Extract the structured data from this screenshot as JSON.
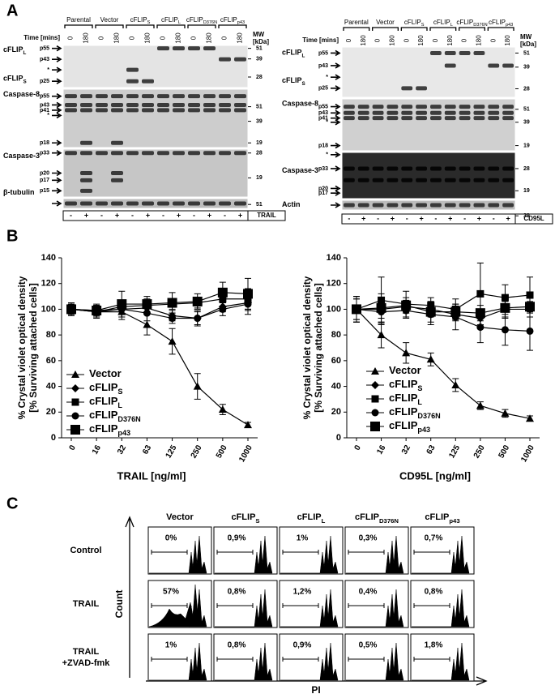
{
  "panel_a": {
    "label": "A",
    "blots": [
      {
        "time_label": "Time [mins]",
        "mw_label": "MW",
        "mw_unit": "[kDa]",
        "groups": [
          {
            "name": "Parental"
          },
          {
            "name": "Vector"
          },
          {
            "name": "cFLIP",
            "sub": "S"
          },
          {
            "name": "cFLIP",
            "sub": "L"
          },
          {
            "name": "cFLIP",
            "sub": "D376N"
          },
          {
            "name": "cFLIP",
            "sub": "p43"
          }
        ],
        "times": [
          "0",
          "180"
        ],
        "sections": [
          {
            "titles": [
              {
                "name": "cFLIP",
                "sub": "L"
              },
              {
                "name": "cFLIP",
                "sub": "S"
              }
            ],
            "bands": [
              "p55",
              "p43",
              "*",
              "p25"
            ],
            "mw": [
              "51",
              "39",
              "28"
            ]
          },
          {
            "titles": [
              {
                "name": "Caspase-8"
              }
            ],
            "bands": [
              "p55",
              "p43",
              "p41",
              "*",
              "p18"
            ],
            "mw": [
              "51",
              "39",
              "19"
            ]
          },
          {
            "titles": [
              {
                "name": "Caspase-3"
              }
            ],
            "bands": [
              "p33",
              "p20",
              "p17",
              "p15"
            ],
            "mw": [
              "28",
              "19"
            ]
          },
          {
            "titles": [
              {
                "name": "β-tubulin"
              }
            ],
            "bands": [],
            "mw": [
              "51"
            ]
          }
        ],
        "treatments": [
          "-",
          "+"
        ],
        "treatment": "TRAIL"
      },
      {
        "time_label": "Time [mins]",
        "mw_label": "MW",
        "mw_unit": "[kDa]",
        "groups": [
          {
            "name": "Parental"
          },
          {
            "name": "Vector"
          },
          {
            "name": "cFLIP",
            "sub": "S"
          },
          {
            "name": "cFLIP",
            "sub": "L"
          },
          {
            "name": "cFLIP",
            "sub": "D376N"
          },
          {
            "name": "cFLIP",
            "sub": "p43"
          }
        ],
        "times": [
          "0",
          "180"
        ],
        "sections": [
          {
            "titles": [
              {
                "name": "cFLIP",
                "sub": "L"
              },
              {
                "name": "cFLIP",
                "sub": "S"
              }
            ],
            "bands": [
              "p55",
              "p43",
              "*",
              "p25"
            ],
            "mw": [
              "51",
              "39",
              "28"
            ]
          },
          {
            "titles": [
              {
                "name": "Caspase-8"
              }
            ],
            "bands": [
              "p55",
              "p43",
              "p41",
              "*",
              "p18"
            ],
            "mw": [
              "51",
              "39",
              "19"
            ]
          },
          {
            "titles": [
              {
                "name": "Caspase-3"
              }
            ],
            "bands": [
              "*",
              "p33",
              "p20",
              "p17"
            ],
            "mw": [
              "28",
              "19"
            ]
          },
          {
            "titles": [
              {
                "name": "Actin"
              }
            ],
            "bands": [],
            "mw": [
              "39"
            ]
          }
        ],
        "treatments": [
          "-",
          "+"
        ],
        "treatment": "CD95L"
      }
    ]
  },
  "panel_b": {
    "label": "B"
  },
  "chart_data": [
    {
      "type": "line",
      "x_label": "TRAIL [ng/ml]",
      "y_label": [
        "% Crystal violet optical density",
        "[% Surviving attached cells]"
      ],
      "categories": [
        "0",
        "16",
        "32",
        "63",
        "125",
        "250",
        "500",
        "1000"
      ],
      "ylim": [
        0,
        140
      ],
      "yticks": [
        0,
        20,
        40,
        60,
        80,
        100,
        120,
        140
      ],
      "series": [
        {
          "name": "Vector",
          "color": "#000000",
          "marker": "triangle",
          "values": [
            100,
            98,
            98,
            88,
            75,
            40,
            22,
            10
          ],
          "errors": [
            5,
            5,
            6,
            8,
            10,
            10,
            4,
            2
          ]
        },
        {
          "name": "cFLIP",
          "name_sub": "S",
          "color": "#000000",
          "marker": "diamond",
          "values": [
            100,
            98,
            100,
            101,
            95,
            93,
            102,
            105
          ],
          "errors": [
            4,
            4,
            4,
            4,
            4,
            6,
            4,
            6
          ]
        },
        {
          "name": "cFLIP",
          "name_sub": "L",
          "color": "#000000",
          "marker": "square",
          "values": [
            100,
            98,
            102,
            103,
            104,
            105,
            108,
            108
          ],
          "errors": [
            3,
            4,
            5,
            5,
            4,
            4,
            6,
            8
          ]
        },
        {
          "name": "cFLIP",
          "name_sub": "D376N",
          "color": "#000000",
          "marker": "circle",
          "values": [
            100,
            99,
            100,
            97,
            93,
            93,
            100,
            104
          ],
          "errors": [
            3,
            5,
            6,
            6,
            4,
            5,
            5,
            8
          ]
        },
        {
          "name": "cFLIP",
          "name_sub": "p43",
          "color": "#000000",
          "marker": "bigsquare",
          "values": [
            100,
            99,
            104,
            104,
            105,
            106,
            113,
            112
          ],
          "errors": [
            4,
            4,
            10,
            6,
            8,
            6,
            8,
            12
          ]
        }
      ]
    },
    {
      "type": "line",
      "x_label": "CD95L [ng/ml]",
      "y_label": [
        "% Crystal violet optical density",
        "[% Surviving attached cells]"
      ],
      "categories": [
        "0",
        "16",
        "32",
        "63",
        "125",
        "250",
        "500",
        "1000"
      ],
      "ylim": [
        0,
        140
      ],
      "yticks": [
        0,
        20,
        40,
        60,
        80,
        100,
        120,
        140
      ],
      "series": [
        {
          "name": "Vector",
          "color": "#000000",
          "marker": "triangle",
          "values": [
            100,
            80,
            66,
            61,
            41,
            25,
            19,
            15
          ],
          "errors": [
            10,
            10,
            8,
            5,
            5,
            3,
            3,
            2
          ]
        },
        {
          "name": "cFLIP",
          "name_sub": "S",
          "color": "#000000",
          "marker": "diamond",
          "values": [
            100,
            100,
            102,
            100,
            96,
            93,
            100,
            100
          ],
          "errors": [
            10,
            12,
            5,
            6,
            5,
            5,
            6,
            6
          ]
        },
        {
          "name": "cFLIP",
          "name_sub": "L",
          "color": "#000000",
          "marker": "square",
          "values": [
            100,
            107,
            104,
            103,
            100,
            112,
            109,
            111
          ],
          "errors": [
            8,
            18,
            10,
            6,
            8,
            24,
            10,
            14
          ]
        },
        {
          "name": "cFLIP",
          "name_sub": "D376N",
          "color": "#000000",
          "marker": "circle",
          "values": [
            100,
            98,
            99,
            96,
            94,
            86,
            84,
            83
          ],
          "errors": [
            10,
            8,
            6,
            8,
            10,
            12,
            12,
            15
          ]
        },
        {
          "name": "cFLIP",
          "name_sub": "p43",
          "color": "#000000",
          "marker": "bigsquare",
          "values": [
            100,
            101,
            103,
            98,
            98,
            97,
            101,
            102
          ],
          "errors": [
            8,
            8,
            6,
            8,
            6,
            6,
            8,
            8
          ]
        }
      ]
    }
  ],
  "panel_c": {
    "label": "C",
    "y_axis": "Count",
    "x_axis": "PI",
    "columns": [
      {
        "name": "Vector"
      },
      {
        "name": "cFLIP",
        "sub": "S"
      },
      {
        "name": "cFLIP",
        "sub": "L"
      },
      {
        "name": "cFLIP",
        "sub": "D376N"
      },
      {
        "name": "cFLIP",
        "sub": "p43"
      }
    ],
    "rows": [
      {
        "label": [
          "Control"
        ],
        "values": [
          "0%",
          "0,9%",
          "1%",
          "0,3%",
          "0,7%"
        ]
      },
      {
        "label": [
          "TRAIL"
        ],
        "values": [
          "57%",
          "0,8%",
          "1,2%",
          "0,4%",
          "0,8%"
        ]
      },
      {
        "label": [
          "TRAIL",
          "+ZVAD-fmk"
        ],
        "values": [
          "1%",
          "0,8%",
          "0,9%",
          "0,5%",
          "1,8%"
        ]
      }
    ]
  }
}
